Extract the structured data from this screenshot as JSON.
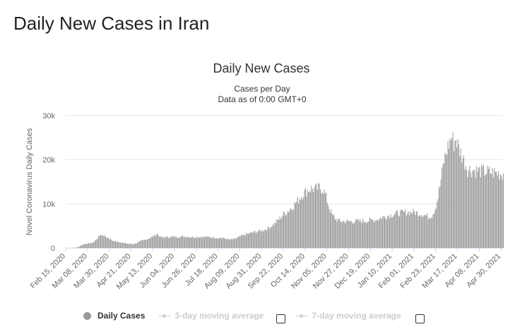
{
  "page": {
    "title": "Daily New Cases in Iran"
  },
  "chart_data": {
    "type": "bar",
    "title": "Daily New Cases",
    "subtitle_lines": [
      "Cases per Day",
      "Data as of 0:00 GMT+0"
    ],
    "xlabel": "",
    "ylabel": "Novel Coronavirus Daily Cases",
    "ylim": [
      0,
      30000
    ],
    "y_ticks": [
      0,
      10000,
      20000,
      30000
    ],
    "y_tick_labels": [
      "0",
      "10k",
      "20k",
      "30k"
    ],
    "x_tick_labels": [
      "Feb 15, 2020",
      "Mar 08, 2020",
      "Mar 30, 2020",
      "Apr 21, 2020",
      "May 13, 2020",
      "Jun 04, 2020",
      "Jun 26, 2020",
      "Jul 18, 2020",
      "Aug 09, 2020",
      "Aug 31, 2020",
      "Sep 22, 2020",
      "Oct 14, 2020",
      "Nov 05, 2020",
      "Nov 27, 2020",
      "Dec 19, 2020",
      "Jan 10, 2021",
      "Feb 01, 2021",
      "Feb 23, 2021",
      "Mar 17, 2021",
      "Apr 08, 2021",
      "Apr 30, 2021"
    ],
    "date_range": [
      "Feb 15, 2020",
      "May 02, 2021"
    ],
    "days_between_ticks": 22,
    "series": [
      {
        "name": "Daily Cases",
        "color": "#999999",
        "anchors": [
          [
            0,
            0
          ],
          [
            3,
            0
          ],
          [
            6,
            10
          ],
          [
            9,
            60
          ],
          [
            12,
            200
          ],
          [
            15,
            600
          ],
          [
            18,
            900
          ],
          [
            21,
            1000
          ],
          [
            24,
            1100
          ],
          [
            27,
            1200
          ],
          [
            30,
            1800
          ],
          [
            33,
            2600
          ],
          [
            35,
            3000
          ],
          [
            38,
            2900
          ],
          [
            41,
            2500
          ],
          [
            44,
            2100
          ],
          [
            47,
            1700
          ],
          [
            50,
            1500
          ],
          [
            53,
            1400
          ],
          [
            56,
            1300
          ],
          [
            59,
            1100
          ],
          [
            62,
            1000
          ],
          [
            65,
            950
          ],
          [
            68,
            900
          ],
          [
            71,
            1100
          ],
          [
            74,
            1400
          ],
          [
            77,
            1700
          ],
          [
            80,
            1900
          ],
          [
            83,
            2100
          ],
          [
            86,
            2400
          ],
          [
            89,
            2800
          ],
          [
            92,
            3200
          ],
          [
            95,
            2500
          ],
          [
            98,
            2400
          ],
          [
            101,
            2500
          ],
          [
            110,
            2550
          ],
          [
            120,
            2600
          ],
          [
            130,
            2500
          ],
          [
            140,
            2550
          ],
          [
            150,
            2400
          ],
          [
            160,
            2200
          ],
          [
            165,
            1900
          ],
          [
            170,
            2000
          ],
          [
            175,
            2500
          ],
          [
            180,
            3000
          ],
          [
            185,
            3300
          ],
          [
            190,
            3600
          ],
          [
            195,
            3800
          ],
          [
            200,
            4100
          ],
          [
            205,
            4600
          ],
          [
            210,
            5400
          ],
          [
            215,
            6500
          ],
          [
            220,
            7700
          ],
          [
            225,
            8500
          ],
          [
            230,
            9600
          ],
          [
            235,
            11000
          ],
          [
            240,
            12400
          ],
          [
            245,
            13200
          ],
          [
            248,
            13500
          ],
          [
            252,
            13300
          ],
          [
            256,
            13700
          ],
          [
            260,
            13300
          ],
          [
            263,
            11500
          ],
          [
            266,
            9200
          ],
          [
            269,
            7500
          ],
          [
            273,
            6500
          ],
          [
            277,
            6100
          ],
          [
            285,
            6000
          ],
          [
            295,
            6100
          ],
          [
            305,
            6200
          ],
          [
            315,
            6500
          ],
          [
            320,
            7000
          ],
          [
            325,
            7300
          ],
          [
            330,
            7600
          ],
          [
            335,
            7900
          ],
          [
            340,
            8000
          ],
          [
            345,
            8100
          ],
          [
            350,
            8200
          ],
          [
            355,
            8000
          ],
          [
            360,
            7700
          ],
          [
            364,
            7300
          ],
          [
            367,
            7100
          ],
          [
            370,
            7500
          ],
          [
            373,
            8900
          ],
          [
            376,
            11500
          ],
          [
            379,
            15500
          ],
          [
            382,
            19800
          ],
          [
            385,
            22200
          ],
          [
            388,
            24300
          ],
          [
            390,
            25100
          ],
          [
            392,
            23800
          ],
          [
            394,
            24800
          ],
          [
            397,
            22600
          ],
          [
            400,
            21000
          ],
          [
            403,
            19500
          ],
          [
            406,
            17800
          ],
          [
            442,
            16800
          ]
        ]
      }
    ],
    "legend": [
      {
        "label": "Daily Cases",
        "active": true
      },
      {
        "label": "3-day moving average",
        "active": false
      },
      {
        "label": "7-day moving average",
        "active": false
      }
    ],
    "grid": true
  },
  "colors": {
    "bar": "#999999",
    "grid": "#e6e6e6",
    "axis_text": "#666666"
  }
}
